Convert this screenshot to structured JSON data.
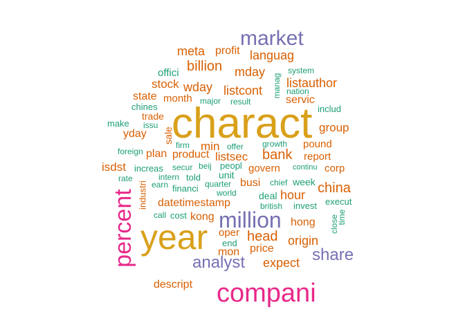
{
  "palette": {
    "teal": "#1b9e77",
    "orange": "#d95f02",
    "purple": "#7570b3",
    "magenta": "#e7298a",
    "gold": "#d9a01a"
  },
  "words": [
    {
      "text": "charact",
      "color": "gold"
    },
    {
      "text": "year",
      "color": "gold"
    },
    {
      "text": "compani",
      "color": "magenta"
    },
    {
      "text": "percent",
      "color": "magenta"
    },
    {
      "text": "market",
      "color": "purple"
    },
    {
      "text": "million",
      "color": "purple"
    },
    {
      "text": "analyst",
      "color": "purple"
    },
    {
      "text": "share",
      "color": "purple"
    },
    {
      "text": "meta",
      "color": "orange"
    },
    {
      "text": "profit",
      "color": "orange"
    },
    {
      "text": "languag",
      "color": "orange"
    },
    {
      "text": "billion",
      "color": "orange"
    },
    {
      "text": "mday",
      "color": "orange"
    },
    {
      "text": "offici",
      "color": "teal"
    },
    {
      "text": "system",
      "color": "teal"
    },
    {
      "text": "manag",
      "color": "teal"
    },
    {
      "text": "stock",
      "color": "orange"
    },
    {
      "text": "wday",
      "color": "orange"
    },
    {
      "text": "listcont",
      "color": "orange"
    },
    {
      "text": "listauthor",
      "color": "orange"
    },
    {
      "text": "nation",
      "color": "teal"
    },
    {
      "text": "state",
      "color": "orange"
    },
    {
      "text": "month",
      "color": "orange"
    },
    {
      "text": "major",
      "color": "teal"
    },
    {
      "text": "result",
      "color": "teal"
    },
    {
      "text": "servic",
      "color": "orange"
    },
    {
      "text": "chines",
      "color": "teal"
    },
    {
      "text": "includ",
      "color": "teal"
    },
    {
      "text": "trade",
      "color": "orange"
    },
    {
      "text": "make",
      "color": "teal"
    },
    {
      "text": "issu",
      "color": "teal"
    },
    {
      "text": "sale",
      "color": "orange"
    },
    {
      "text": "group",
      "color": "orange"
    },
    {
      "text": "yday",
      "color": "orange"
    },
    {
      "text": "pound",
      "color": "orange"
    },
    {
      "text": "firm",
      "color": "teal"
    },
    {
      "text": "min",
      "color": "orange"
    },
    {
      "text": "offer",
      "color": "teal"
    },
    {
      "text": "growth",
      "color": "teal"
    },
    {
      "text": "foreign",
      "color": "teal"
    },
    {
      "text": "plan",
      "color": "orange"
    },
    {
      "text": "product",
      "color": "orange"
    },
    {
      "text": "listsec",
      "color": "orange"
    },
    {
      "text": "bank",
      "color": "orange"
    },
    {
      "text": "report",
      "color": "orange"
    },
    {
      "text": "isdst",
      "color": "orange"
    },
    {
      "text": "increas",
      "color": "teal"
    },
    {
      "text": "secur",
      "color": "teal"
    },
    {
      "text": "beij",
      "color": "teal"
    },
    {
      "text": "peopl",
      "color": "teal"
    },
    {
      "text": "govern",
      "color": "orange"
    },
    {
      "text": "continu",
      "color": "teal"
    },
    {
      "text": "corp",
      "color": "orange"
    },
    {
      "text": "rate",
      "color": "teal"
    },
    {
      "text": "intern",
      "color": "teal"
    },
    {
      "text": "told",
      "color": "teal"
    },
    {
      "text": "unit",
      "color": "teal"
    },
    {
      "text": "busi",
      "color": "orange"
    },
    {
      "text": "chief",
      "color": "teal"
    },
    {
      "text": "week",
      "color": "teal"
    },
    {
      "text": "china",
      "color": "orange"
    },
    {
      "text": "industri",
      "color": "orange"
    },
    {
      "text": "earn",
      "color": "teal"
    },
    {
      "text": "financi",
      "color": "teal"
    },
    {
      "text": "quarter",
      "color": "teal"
    },
    {
      "text": "world",
      "color": "teal"
    },
    {
      "text": "deal",
      "color": "teal"
    },
    {
      "text": "hour",
      "color": "orange"
    },
    {
      "text": "datetimestamp",
      "color": "orange"
    },
    {
      "text": "british",
      "color": "teal"
    },
    {
      "text": "invest",
      "color": "teal"
    },
    {
      "text": "execut",
      "color": "teal"
    },
    {
      "text": "call",
      "color": "teal"
    },
    {
      "text": "cost",
      "color": "teal"
    },
    {
      "text": "kong",
      "color": "orange"
    },
    {
      "text": "hong",
      "color": "orange"
    },
    {
      "text": "close",
      "color": "teal"
    },
    {
      "text": "time",
      "color": "teal"
    },
    {
      "text": "oper",
      "color": "orange"
    },
    {
      "text": "head",
      "color": "orange"
    },
    {
      "text": "end",
      "color": "teal"
    },
    {
      "text": "origin",
      "color": "orange"
    },
    {
      "text": "mon",
      "color": "orange"
    },
    {
      "text": "price",
      "color": "orange"
    },
    {
      "text": "expect",
      "color": "orange"
    },
    {
      "text": "descript",
      "color": "orange"
    }
  ]
}
